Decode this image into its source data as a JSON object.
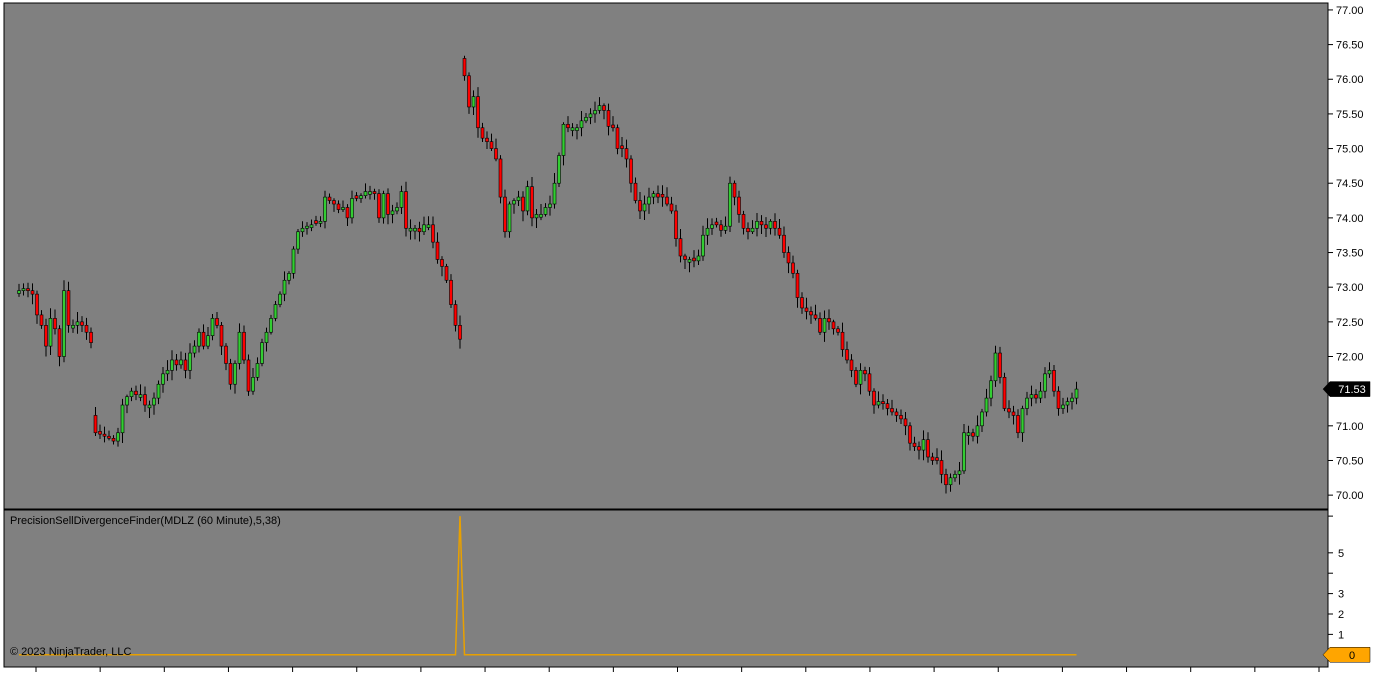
{
  "colors": {
    "panel_background": "#808080",
    "outer_background": "#ffffff",
    "border": "#000000",
    "up_candle": "#32cd32",
    "down_candle": "#ff0000",
    "wick": "#000000",
    "indicator_line": "#e8a000",
    "last_price_badge": "#000000",
    "indicator_badge": "#ffa500"
  },
  "indicator_label": "PrecisionSellDivergenceFinder(MDLZ (60 Minute),5,38)",
  "copyright": "© 2023 NinjaTrader, LLC",
  "last_price_label": "71.53",
  "indicator_value_label": "0",
  "chart_data": [
    {
      "type": "candlestick",
      "symbol": "MDLZ",
      "interval": "60 Minute",
      "ylim": [
        69.8,
        77.1
      ],
      "yticks": [
        70.0,
        70.5,
        71.0,
        71.5,
        72.0,
        72.5,
        73.0,
        73.5,
        74.0,
        74.5,
        75.0,
        75.5,
        76.0,
        76.5,
        77.0
      ],
      "tick_labels": [
        "70.00",
        "70.50",
        "71.00",
        "71.50",
        "72.00",
        "72.50",
        "73.00",
        "73.50",
        "74.00",
        "74.50",
        "75.00",
        "75.50",
        "76.00",
        "76.50",
        "77.00"
      ],
      "last_price": 71.53,
      "closes": [
        72.95,
        72.98,
        72.95,
        72.9,
        72.6,
        72.45,
        72.15,
        72.55,
        72.4,
        72.0,
        72.95,
        72.45,
        72.45,
        72.5,
        72.45,
        72.35,
        72.2,
        70.9,
        70.88,
        70.85,
        70.82,
        70.78,
        70.9,
        71.3,
        71.42,
        71.5,
        71.45,
        71.45,
        71.3,
        71.3,
        71.4,
        71.6,
        71.75,
        71.8,
        71.95,
        71.88,
        71.95,
        71.8,
        72.05,
        72.15,
        72.35,
        72.15,
        72.3,
        72.55,
        72.45,
        72.15,
        71.9,
        71.6,
        71.9,
        72.35,
        71.95,
        71.5,
        71.7,
        71.9,
        72.2,
        72.35,
        72.55,
        72.75,
        72.9,
        73.1,
        73.2,
        73.55,
        73.8,
        73.85,
        73.88,
        73.9,
        73.92,
        73.95,
        74.3,
        74.25,
        74.2,
        74.12,
        74.15,
        74.0,
        74.28,
        74.28,
        74.32,
        74.38,
        74.38,
        74.35,
        74.0,
        74.35,
        74.05,
        74.1,
        74.15,
        74.38,
        73.85,
        73.85,
        73.85,
        73.8,
        73.9,
        73.9,
        73.65,
        73.4,
        73.3,
        73.1,
        72.75,
        72.45,
        72.25,
        76.05,
        75.6,
        75.75,
        75.3,
        75.15,
        75.1,
        75.0,
        74.85,
        74.3,
        73.8,
        74.2,
        74.25,
        74.3,
        74.1,
        74.45,
        74.0,
        74.05,
        74.05,
        74.15,
        74.2,
        74.5,
        74.9,
        75.35,
        75.3,
        75.3,
        75.3,
        75.4,
        75.45,
        75.5,
        75.55,
        75.62,
        75.55,
        75.32,
        75.3,
        75.0,
        75.0,
        74.85,
        74.5,
        74.25,
        74.1,
        74.2,
        74.3,
        74.35,
        74.3,
        74.3,
        74.2,
        74.1,
        73.7,
        73.45,
        73.4,
        73.4,
        73.38,
        73.45,
        73.75,
        73.85,
        73.9,
        73.9,
        73.82,
        73.88,
        74.5,
        74.3,
        74.05,
        73.85,
        73.8,
        73.85,
        73.95,
        73.9,
        73.85,
        73.95,
        73.85,
        73.75,
        73.5,
        73.35,
        73.2,
        72.85,
        72.7,
        72.65,
        72.6,
        72.55,
        72.35,
        72.55,
        72.5,
        72.4,
        72.35,
        72.1,
        71.95,
        71.8,
        71.6,
        71.8,
        71.75,
        71.5,
        71.3,
        71.35,
        71.32,
        71.25,
        71.2,
        71.15,
        71.1,
        71.0,
        70.75,
        70.7,
        70.65,
        70.8,
        70.55,
        70.5,
        70.5,
        70.3,
        70.15,
        70.25,
        70.3,
        70.35,
        70.9,
        70.9,
        70.85,
        71.0,
        71.2,
        71.4,
        71.65,
        72.05,
        71.7,
        71.25,
        71.2,
        71.15,
        70.9,
        71.25,
        71.4,
        71.45,
        71.4,
        71.5,
        71.75,
        71.8,
        71.5,
        71.25,
        71.3,
        71.35,
        71.4,
        71.53
      ]
    },
    {
      "type": "line",
      "name": "PrecisionSellDivergenceFinder",
      "ylim": [
        -0.6,
        7.1
      ],
      "yticks": [
        1,
        2,
        3,
        5
      ],
      "tick_labels": [
        "1",
        "2",
        "3",
        "5"
      ],
      "spike_bar_index": 98,
      "spike_value": 6.8,
      "baseline_value": 0
    }
  ]
}
